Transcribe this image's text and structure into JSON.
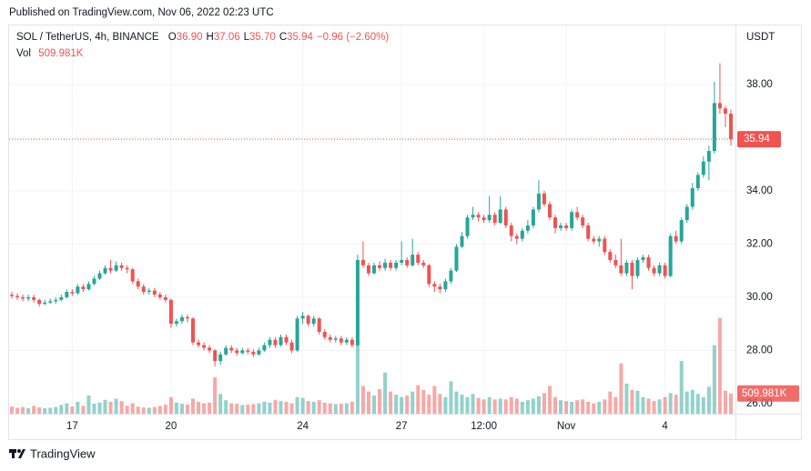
{
  "published": "Published on TradingView.com, Nov 06, 2022 02:23 UTC",
  "brand": "TradingView",
  "legend": {
    "symbol": "SOL / TetherUS, 4h, BINANCE",
    "ohlc": [
      {
        "key": "O",
        "text": "36.90"
      },
      {
        "key": "H",
        "text": "37.06"
      },
      {
        "key": "L",
        "text": "35.70"
      },
      {
        "key": "C",
        "text": "35.94"
      }
    ],
    "change": "−0.96 (−2.60%)",
    "vol_key": "Vol"
  },
  "chart_data": {
    "type": "candlestick",
    "currency": "USDT",
    "up_color": "#26a69a",
    "down_color": "#ef5350",
    "grid": true,
    "ylim": [
      25.62,
      40.22
    ],
    "yticks": [
      {
        "value": 26,
        "label": "26.00"
      },
      {
        "value": 28,
        "label": "28.00"
      },
      {
        "value": 30,
        "label": "30.00"
      },
      {
        "value": 32,
        "label": "32.00"
      },
      {
        "value": 34,
        "label": "34.00"
      },
      {
        "value": 36,
        "label": "36.00"
      },
      {
        "value": 38,
        "label": "38.00"
      }
    ],
    "volume_ylim": [
      0,
      9800000
    ],
    "volume_label": "509.981K",
    "categories": [
      null,
      null,
      null,
      null,
      null,
      null,
      null,
      null,
      null,
      null,
      null,
      "17",
      null,
      null,
      null,
      null,
      null,
      null,
      null,
      null,
      null,
      null,
      null,
      null,
      null,
      null,
      null,
      null,
      null,
      "20",
      null,
      null,
      null,
      null,
      null,
      null,
      null,
      null,
      null,
      null,
      null,
      null,
      null,
      null,
      null,
      null,
      null,
      null,
      null,
      null,
      null,
      null,
      null,
      "24",
      null,
      null,
      null,
      null,
      null,
      null,
      null,
      null,
      null,
      null,
      null,
      null,
      null,
      null,
      null,
      null,
      null,
      "27",
      null,
      null,
      null,
      null,
      null,
      null,
      null,
      null,
      null,
      null,
      null,
      null,
      null,
      null,
      "12:00",
      null,
      null,
      null,
      null,
      null,
      null,
      null,
      null,
      null,
      null,
      null,
      null,
      null,
      null,
      "Nov",
      null,
      null,
      null,
      null,
      null,
      null,
      null,
      null,
      null,
      null,
      null,
      null,
      null,
      null,
      null,
      null,
      null,
      "4",
      null,
      null,
      null,
      null,
      null,
      null,
      null,
      null,
      null,
      null,
      null,
      null
    ],
    "open": [
      30.1,
      30.05,
      30.0,
      29.95,
      30.0,
      29.9,
      29.75,
      29.8,
      29.85,
      29.9,
      30.0,
      30.2,
      30.15,
      30.4,
      30.3,
      30.5,
      30.7,
      30.9,
      31.1,
      31.0,
      31.2,
      31.1,
      31.05,
      30.6,
      30.4,
      30.2,
      30.25,
      30.1,
      30.0,
      29.9,
      29.0,
      29.1,
      29.25,
      29.2,
      28.3,
      28.2,
      28.1,
      28.0,
      27.6,
      27.85,
      28.1,
      28.0,
      27.9,
      28.0,
      27.95,
      27.85,
      28.0,
      28.2,
      28.4,
      28.2,
      28.5,
      28.3,
      28.0,
      29.2,
      29.3,
      29.0,
      29.2,
      28.7,
      28.5,
      28.4,
      28.45,
      28.3,
      28.4,
      28.2,
      31.4,
      31.2,
      30.9,
      31.2,
      31.1,
      31.3,
      31.1,
      31.3,
      31.4,
      31.2,
      31.6,
      31.3,
      31.2,
      30.5,
      30.4,
      30.3,
      30.6,
      31.0,
      31.9,
      32.3,
      33.0,
      33.1,
      33.0,
      32.9,
      33.1,
      32.8,
      33.3,
      32.7,
      32.3,
      32.2,
      32.5,
      32.7,
      33.3,
      33.9,
      33.5,
      33.0,
      32.6,
      32.7,
      32.6,
      33.2,
      33.0,
      32.7,
      32.2,
      32.1,
      32.2,
      31.7,
      31.4,
      31.2,
      30.9,
      31.3,
      30.8,
      31.4,
      31.5,
      31.1,
      30.9,
      31.2,
      30.8,
      32.3,
      32.1,
      32.9,
      33.4,
      34.1,
      34.6,
      35.1,
      35.5,
      37.3,
      37.1,
      36.9
    ],
    "high": [
      30.2,
      30.15,
      30.1,
      30.1,
      30.1,
      29.95,
      29.9,
      29.95,
      30.0,
      30.1,
      30.3,
      30.3,
      30.5,
      30.5,
      30.6,
      30.8,
      31.0,
      31.2,
      31.4,
      31.35,
      31.3,
      31.2,
      31.1,
      30.7,
      30.5,
      30.35,
      30.35,
      30.2,
      30.1,
      29.95,
      29.2,
      29.35,
      29.35,
      29.25,
      28.4,
      28.3,
      28.2,
      28.05,
      27.95,
      28.2,
      28.2,
      28.1,
      28.1,
      28.1,
      28.05,
      28.1,
      28.3,
      28.5,
      28.5,
      28.6,
      28.6,
      28.4,
      29.3,
      29.45,
      29.35,
      29.3,
      29.25,
      28.8,
      28.6,
      28.55,
      28.55,
      28.5,
      28.5,
      31.6,
      32.1,
      31.3,
      31.3,
      31.35,
      31.45,
      31.4,
      31.4,
      32.1,
      31.5,
      32.2,
      31.7,
      31.4,
      31.25,
      30.6,
      30.5,
      30.7,
      31.1,
      32.0,
      32.45,
      33.1,
      33.4,
      33.2,
      33.1,
      33.8,
      33.2,
      33.8,
      33.4,
      32.8,
      32.4,
      32.6,
      32.9,
      33.4,
      34.4,
      34.0,
      33.6,
      33.1,
      32.8,
      32.8,
      33.3,
      33.4,
      33.1,
      32.8,
      32.3,
      32.3,
      32.3,
      31.8,
      31.6,
      32.2,
      31.4,
      31.4,
      31.5,
      31.6,
      31.6,
      31.2,
      31.3,
      31.3,
      32.4,
      32.5,
      33.0,
      33.5,
      34.3,
      34.7,
      35.3,
      35.7,
      38.1,
      38.8,
      37.2,
      37.06
    ],
    "low": [
      29.95,
      29.9,
      29.85,
      29.85,
      29.8,
      29.65,
      29.7,
      29.75,
      29.75,
      29.85,
      29.95,
      30.05,
      30.1,
      30.2,
      30.25,
      30.45,
      30.65,
      30.85,
      30.9,
      30.95,
      31.0,
      30.9,
      30.5,
      30.3,
      30.1,
      30.1,
      30.0,
      29.9,
      29.8,
      28.85,
      28.9,
      29.0,
      29.05,
      28.2,
      28.1,
      28.0,
      27.9,
      27.4,
      27.45,
      27.8,
      27.9,
      27.8,
      27.85,
      27.85,
      27.75,
      27.8,
      27.95,
      28.1,
      28.1,
      28.15,
      28.2,
      27.9,
      27.95,
      29.0,
      28.9,
      28.9,
      28.6,
      28.4,
      28.3,
      28.3,
      28.2,
      28.2,
      28.1,
      28.15,
      31.1,
      30.8,
      30.85,
      31.0,
      31.0,
      31.0,
      31.0,
      31.2,
      31.1,
      31.15,
      31.2,
      31.1,
      30.4,
      30.2,
      30.15,
      30.2,
      30.5,
      30.95,
      31.85,
      32.2,
      32.9,
      32.85,
      32.8,
      32.8,
      32.7,
      32.75,
      32.6,
      32.1,
      32.0,
      32.1,
      32.4,
      32.6,
      33.2,
      33.4,
      32.9,
      32.4,
      32.5,
      32.5,
      32.5,
      32.9,
      32.6,
      32.1,
      32.0,
      31.9,
      31.6,
      31.3,
      31.1,
      30.8,
      30.8,
      30.3,
      30.7,
      31.3,
      31.0,
      30.8,
      30.8,
      30.7,
      30.75,
      32.0,
      32.0,
      32.8,
      33.3,
      34.0,
      34.5,
      34.4,
      35.4,
      36.9,
      36.4,
      35.7
    ],
    "close": [
      30.05,
      30.0,
      29.95,
      30.0,
      29.9,
      29.75,
      29.8,
      29.85,
      29.9,
      30.0,
      30.2,
      30.15,
      30.4,
      30.3,
      30.5,
      30.7,
      30.9,
      31.1,
      31.0,
      31.2,
      31.1,
      31.05,
      30.6,
      30.4,
      30.2,
      30.25,
      30.1,
      30.0,
      29.9,
      29.0,
      29.1,
      29.25,
      29.2,
      28.3,
      28.2,
      28.1,
      28.0,
      27.6,
      27.85,
      28.1,
      28.0,
      27.9,
      28.0,
      27.95,
      27.85,
      28.0,
      28.2,
      28.4,
      28.2,
      28.5,
      28.3,
      28.0,
      29.2,
      29.3,
      29.0,
      29.2,
      28.7,
      28.5,
      28.4,
      28.45,
      28.3,
      28.4,
      28.2,
      31.4,
      31.2,
      30.9,
      31.2,
      31.1,
      31.3,
      31.1,
      31.3,
      31.4,
      31.2,
      31.6,
      31.3,
      31.2,
      30.5,
      30.4,
      30.3,
      30.6,
      31.0,
      31.9,
      32.3,
      33.0,
      33.1,
      33.0,
      32.9,
      33.1,
      32.8,
      33.3,
      32.7,
      32.3,
      32.2,
      32.5,
      32.7,
      33.3,
      33.9,
      33.5,
      33.0,
      32.6,
      32.7,
      32.6,
      33.2,
      33.0,
      32.7,
      32.2,
      32.1,
      32.2,
      31.7,
      31.4,
      31.2,
      30.9,
      31.3,
      30.8,
      31.4,
      31.5,
      31.1,
      30.9,
      31.2,
      30.8,
      32.3,
      32.1,
      32.9,
      33.4,
      34.1,
      34.6,
      35.1,
      35.5,
      37.3,
      37.1,
      36.9,
      35.94
    ],
    "volume": [
      180000,
      150000,
      170000,
      140000,
      200000,
      160000,
      140000,
      150000,
      170000,
      220000,
      260000,
      180000,
      300000,
      200000,
      460000,
      250000,
      280000,
      350000,
      300000,
      380000,
      320000,
      200000,
      260000,
      180000,
      160000,
      150000,
      170000,
      200000,
      230000,
      420000,
      280000,
      250000,
      230000,
      380000,
      300000,
      260000,
      280000,
      920000,
      500000,
      340000,
      260000,
      250000,
      220000,
      230000,
      240000,
      260000,
      300000,
      280000,
      350000,
      320000,
      300000,
      260000,
      420000,
      400000,
      320000,
      300000,
      340000,
      280000,
      260000,
      240000,
      250000,
      260000,
      300000,
      1840000,
      700000,
      560000,
      460000,
      620000,
      1040000,
      560000,
      480000,
      420000,
      460000,
      560000,
      720000,
      600000,
      480000,
      700000,
      500000,
      420000,
      820000,
      560000,
      480000,
      420000,
      500000,
      400000,
      360000,
      420000,
      360000,
      380000,
      360000,
      420000,
      380000,
      300000,
      340000,
      380000,
      440000,
      520000,
      700000,
      420000,
      340000,
      320000,
      300000,
      340000,
      360000,
      300000,
      260000,
      300000,
      360000,
      560000,
      420000,
      1270000,
      760000,
      600000,
      580000,
      420000,
      380000,
      320000,
      360000,
      420000,
      520000,
      480000,
      1330000,
      560000,
      600000,
      500000,
      420000,
      680000,
      1730000,
      2420000,
      580000,
      509981
    ]
  }
}
